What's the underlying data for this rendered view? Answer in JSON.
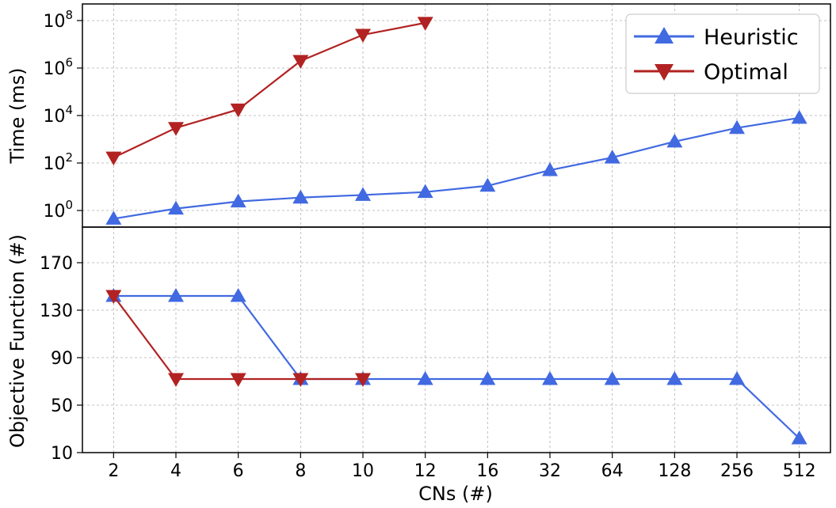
{
  "colors": {
    "heuristic": "#4169e1",
    "optimal": "#b22222",
    "grid": "#b0b0b0",
    "frame": "#000000"
  },
  "chart_data": [
    {
      "type": "line",
      "panel": "top",
      "ylabel": "Time (ms)",
      "yscale": "log",
      "ylim": [
        0.2,
        500000000
      ],
      "yticks": [
        {
          "value": 1,
          "base": "10",
          "exp": "0"
        },
        {
          "value": 100,
          "base": "10",
          "exp": "2"
        },
        {
          "value": 10000,
          "base": "10",
          "exp": "4"
        },
        {
          "value": 1000000,
          "base": "10",
          "exp": "6"
        },
        {
          "value": 100000000,
          "base": "10",
          "exp": "8"
        }
      ],
      "categories": [
        "2",
        "4",
        "6",
        "8",
        "10",
        "12",
        "16",
        "32",
        "64",
        "128",
        "256",
        "512"
      ],
      "grid": true,
      "legend_position": "top-right",
      "series": [
        {
          "name": "Heuristic",
          "marker": "triangle-up",
          "values": [
            0.45,
            1.2,
            2.4,
            3.5,
            4.5,
            6,
            11,
            50,
            170,
            800,
            3000,
            8000
          ]
        },
        {
          "name": "Optimal",
          "marker": "triangle-down",
          "values": [
            170,
            3000,
            18000,
            2000000,
            25000000,
            80000000,
            null,
            null,
            null,
            null,
            null,
            null
          ]
        }
      ]
    },
    {
      "type": "line",
      "panel": "bottom",
      "xlabel": "CNs (#)",
      "ylabel": "Objective Function (#)",
      "ylim": [
        10,
        200
      ],
      "yticks": [
        10,
        50,
        90,
        130,
        170
      ],
      "categories": [
        "2",
        "4",
        "6",
        "8",
        "10",
        "12",
        "16",
        "32",
        "64",
        "128",
        "256",
        "512"
      ],
      "grid": true,
      "series": [
        {
          "name": "Heuristic",
          "marker": "triangle-up",
          "values": [
            142,
            142,
            142,
            72,
            72,
            72,
            72,
            72,
            72,
            72,
            72,
            22
          ]
        },
        {
          "name": "Optimal",
          "marker": "triangle-down",
          "values": [
            142,
            72,
            72,
            72,
            72,
            null,
            null,
            null,
            null,
            null,
            null,
            null
          ]
        }
      ]
    }
  ]
}
